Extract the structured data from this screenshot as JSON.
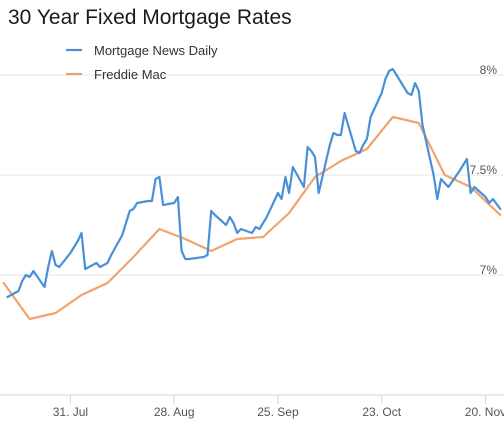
{
  "chart_data": {
    "type": "line",
    "title": "30 Year Fixed Mortgage Rates",
    "xlabel": "",
    "ylabel": "",
    "x_tick_labels": [
      "31. Jul",
      "28. Aug",
      "25. Sep",
      "23. Oct",
      "20. Nov"
    ],
    "y_tick_labels": [
      "8%",
      "7.5%",
      "7%"
    ],
    "ylim": [
      6.4,
      8.05
    ],
    "grid": "horizontal",
    "legend_position": "top-left",
    "series": [
      {
        "name": "Mortgage News Daily",
        "color": "#4a90d9",
        "x": [
          "2023-07-14",
          "2023-07-17",
          "2023-07-18",
          "2023-07-19",
          "2023-07-20",
          "2023-07-21",
          "2023-07-24",
          "2023-07-25",
          "2023-07-26",
          "2023-07-27",
          "2023-07-28",
          "2023-07-31",
          "2023-08-01",
          "2023-08-02",
          "2023-08-03",
          "2023-08-04",
          "2023-08-07",
          "2023-08-08",
          "2023-08-09",
          "2023-08-10",
          "2023-08-11",
          "2023-08-14",
          "2023-08-15",
          "2023-08-16",
          "2023-08-17",
          "2023-08-18",
          "2023-08-21",
          "2023-08-22",
          "2023-08-23",
          "2023-08-24",
          "2023-08-25",
          "2023-08-28",
          "2023-08-29",
          "2023-08-30",
          "2023-08-31",
          "2023-09-01",
          "2023-09-05",
          "2023-09-06",
          "2023-09-07",
          "2023-09-08",
          "2023-09-11",
          "2023-09-12",
          "2023-09-13",
          "2023-09-14",
          "2023-09-15",
          "2023-09-18",
          "2023-09-19",
          "2023-09-20",
          "2023-09-21",
          "2023-09-22",
          "2023-09-25",
          "2023-09-26",
          "2023-09-27",
          "2023-09-28",
          "2023-09-29",
          "2023-10-02",
          "2023-10-03",
          "2023-10-04",
          "2023-10-05",
          "2023-10-06",
          "2023-10-09",
          "2023-10-10",
          "2023-10-11",
          "2023-10-12",
          "2023-10-13",
          "2023-10-16",
          "2023-10-17",
          "2023-10-18",
          "2023-10-19",
          "2023-10-20",
          "2023-10-23",
          "2023-10-24",
          "2023-10-25",
          "2023-10-26",
          "2023-10-27",
          "2023-10-30",
          "2023-10-31",
          "2023-11-01",
          "2023-11-02",
          "2023-11-03",
          "2023-11-06",
          "2023-11-07",
          "2023-11-08",
          "2023-11-09",
          "2023-11-10",
          "2023-11-13",
          "2023-11-14",
          "2023-11-15",
          "2023-11-16",
          "2023-11-17",
          "2023-11-20",
          "2023-11-21",
          "2023-11-22",
          "2023-11-24"
        ],
        "values": [
          6.89,
          6.92,
          6.97,
          7.0,
          6.99,
          7.02,
          6.94,
          7.04,
          7.12,
          7.05,
          7.04,
          7.11,
          7.14,
          7.17,
          7.21,
          7.03,
          7.06,
          7.04,
          7.05,
          7.06,
          7.1,
          7.2,
          7.26,
          7.32,
          7.33,
          7.36,
          7.37,
          7.37,
          7.48,
          7.49,
          7.35,
          7.36,
          7.39,
          7.12,
          7.08,
          7.08,
          7.09,
          7.1,
          7.32,
          7.3,
          7.25,
          7.29,
          7.26,
          7.21,
          7.23,
          7.21,
          7.24,
          7.23,
          7.26,
          7.29,
          7.41,
          7.38,
          7.49,
          7.41,
          7.54,
          7.44,
          7.64,
          7.62,
          7.59,
          7.41,
          7.65,
          7.71,
          7.7,
          7.7,
          7.81,
          7.62,
          7.61,
          7.65,
          7.68,
          7.79,
          7.91,
          7.98,
          8.02,
          8.03,
          8.0,
          7.91,
          7.9,
          7.96,
          7.92,
          7.75,
          7.5,
          7.38,
          7.48,
          7.46,
          7.44,
          7.52,
          7.55,
          7.58,
          7.41,
          7.44,
          7.39,
          7.36,
          7.38,
          7.33
        ]
      },
      {
        "name": "Freddie Mac",
        "color": "#f2a36b",
        "x": [
          "2023-07-13",
          "2023-07-20",
          "2023-07-27",
          "2023-08-03",
          "2023-08-10",
          "2023-08-17",
          "2023-08-24",
          "2023-08-31",
          "2023-09-07",
          "2023-09-14",
          "2023-09-21",
          "2023-09-28",
          "2023-10-05",
          "2023-10-12",
          "2023-10-19",
          "2023-10-26",
          "2023-11-02",
          "2023-11-09",
          "2023-11-16",
          "2023-11-24"
        ],
        "values": [
          6.96,
          6.78,
          6.81,
          6.9,
          6.96,
          7.09,
          7.23,
          7.18,
          7.12,
          7.18,
          7.19,
          7.31,
          7.49,
          7.57,
          7.63,
          7.79,
          7.76,
          7.5,
          7.44,
          7.3
        ]
      }
    ]
  }
}
